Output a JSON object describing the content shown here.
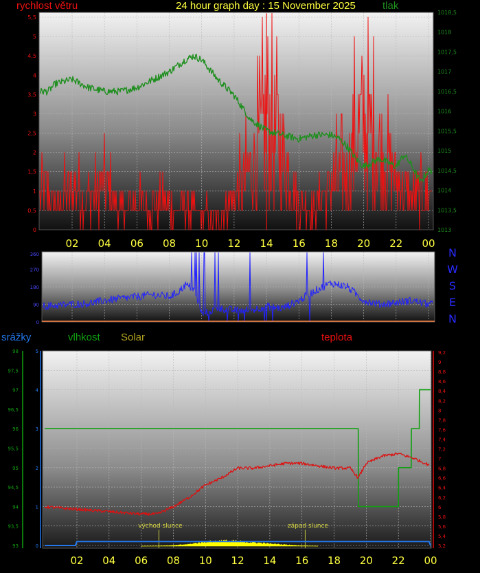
{
  "header": {
    "title": "24 hour graph day : 15 November 2025",
    "left_label": "rychlost větru",
    "right_label": "tlak"
  },
  "colors": {
    "wind": "#ee1111",
    "pressure": "#1f8f1f",
    "direction": "#2222ff",
    "humidity": "#11a011",
    "rain": "#2277ee",
    "temperature": "#dd1111",
    "solar": "#ffff00",
    "hour_labels": "#ffff40"
  },
  "hours": [
    "02",
    "04",
    "06",
    "08",
    "10",
    "12",
    "14",
    "16",
    "18",
    "20",
    "22",
    "00"
  ],
  "panel1": {
    "wind_ticks": [
      "0",
      "0,5",
      "1",
      "1,5",
      "2",
      "2,5",
      "3",
      "3,5",
      "4",
      "4,5",
      "5",
      "5,5"
    ],
    "pressure_ticks": [
      "1013",
      "1013,5",
      "1014",
      "1014,5",
      "1015",
      "1015,5",
      "1016",
      "1016,5",
      "1017",
      "1017,5",
      "1018",
      "1018,5"
    ]
  },
  "panel2": {
    "degree_ticks": [
      "0",
      "90",
      "180",
      "270",
      "360"
    ],
    "compass": [
      "N",
      "W",
      "S",
      "E",
      "N"
    ]
  },
  "panel3": {
    "labels": {
      "rain": "srážky",
      "humidity": "vlhkost",
      "solar": "Solar",
      "temperature": "teplota"
    },
    "humidity_ticks": [
      "93",
      "93,5",
      "94",
      "94,5",
      "95",
      "95,5",
      "96",
      "96,5",
      "97",
      "97,5",
      "98"
    ],
    "rain_ticks": [
      "0",
      "1",
      "2",
      "3",
      "4",
      "5"
    ],
    "temp_ticks": [
      "5,2",
      "5,4",
      "5,6",
      "5,8",
      "6",
      "6,2",
      "6,4",
      "6,6",
      "6,8",
      "7",
      "7,2",
      "7,4",
      "7,6",
      "7,8",
      "8",
      "8,2",
      "8,4",
      "8,6",
      "8,8",
      "9",
      "9,2"
    ],
    "sunrise": "východ slunce",
    "sunset": "západ slunce"
  },
  "chart_data": [
    {
      "type": "line",
      "x_unit": "hour",
      "series": [
        {
          "name": "rychlost větru",
          "x": [
            0.5,
            1,
            2,
            3,
            4,
            5,
            6,
            7,
            8,
            9,
            10,
            11,
            12,
            13,
            13.5,
            14,
            14.5,
            15,
            16,
            17,
            18,
            19,
            19.5,
            20,
            21,
            22,
            23,
            24
          ],
          "values": [
            1.0,
            0.6,
            1.0,
            0.8,
            1.2,
            0.5,
            0.7,
            0.6,
            0.6,
            0.5,
            0.4,
            0.3,
            0.8,
            1.5,
            2.0,
            3.0,
            2.5,
            2.0,
            0.6,
            0.5,
            1.2,
            1.4,
            2.3,
            2.8,
            2.0,
            1.3,
            0.8,
            1.0
          ]
        },
        {
          "name": "tlak",
          "x": [
            0.5,
            1,
            2,
            3,
            4,
            5,
            6,
            7,
            8,
            9,
            9.5,
            10,
            11,
            12,
            13,
            14,
            15,
            16,
            17,
            18,
            18.5,
            19,
            19.5,
            20,
            21,
            22,
            22.5,
            23,
            23.5,
            24
          ],
          "values": [
            1016.5,
            1016.7,
            1016.8,
            1016.6,
            1016.5,
            1016.5,
            1016.6,
            1016.8,
            1017.0,
            1017.3,
            1017.4,
            1017.3,
            1016.8,
            1016.4,
            1015.8,
            1015.5,
            1015.4,
            1015.3,
            1015.4,
            1015.4,
            1015.3,
            1015.1,
            1014.8,
            1014.6,
            1014.8,
            1014.6,
            1014.9,
            1014.6,
            1014.2,
            1014.5
          ]
        }
      ],
      "ylim_wind": [
        0,
        5.6
      ],
      "ylim_pressure": [
        1013,
        1018.6
      ]
    },
    {
      "type": "line",
      "x_unit": "hour",
      "series": [
        {
          "name": "direction",
          "x": [
            0,
            1,
            2,
            3,
            4,
            5,
            6,
            7,
            8,
            8.5,
            9,
            9.5,
            10,
            11,
            12,
            13,
            14,
            15,
            16,
            17,
            18,
            19,
            20,
            21,
            22,
            23,
            24
          ],
          "values": [
            80,
            85,
            90,
            95,
            110,
            120,
            130,
            140,
            130,
            150,
            190,
            170,
            40,
            70,
            60,
            60,
            80,
            70,
            110,
            160,
            200,
            180,
            110,
            90,
            100,
            110,
            90
          ]
        }
      ],
      "ylim": [
        0,
        360
      ]
    },
    {
      "type": "line",
      "x_unit": "hour",
      "series": [
        {
          "name": "teplota",
          "x": [
            0,
            2,
            4,
            6,
            7,
            8,
            9,
            10,
            11,
            12,
            13,
            14,
            15,
            16,
            17,
            18,
            19,
            19.5,
            20,
            21,
            22,
            23,
            24
          ],
          "values": [
            6.0,
            5.95,
            5.9,
            5.85,
            5.85,
            6.0,
            6.2,
            6.45,
            6.6,
            6.8,
            6.8,
            6.85,
            6.9,
            6.9,
            6.85,
            6.8,
            6.8,
            6.6,
            6.9,
            7.05,
            7.1,
            7.0,
            6.85
          ]
        },
        {
          "name": "vlhkost",
          "x": [
            0,
            19.5,
            19.51,
            20.5,
            22,
            22.01,
            22.8,
            22.81,
            23.3,
            23.31,
            24
          ],
          "values": [
            96,
            96,
            94,
            94,
            94,
            95,
            95,
            96,
            96,
            97,
            97
          ]
        },
        {
          "name": "srážky",
          "x": [
            0,
            1,
            2,
            23,
            24
          ],
          "values": [
            0,
            0,
            0.1,
            0.1,
            0
          ]
        },
        {
          "name": "Solar",
          "x": [
            6,
            7,
            8,
            9,
            10,
            11,
            12,
            13,
            14,
            15,
            16,
            17
          ],
          "values": [
            0,
            1,
            3,
            8,
            18,
            22,
            20,
            15,
            10,
            6,
            2,
            0
          ]
        }
      ],
      "ylim_temp": [
        5.2,
        9.2
      ],
      "ylim_humidity": [
        93,
        98
      ],
      "ylim_rain": [
        0,
        5
      ]
    }
  ]
}
